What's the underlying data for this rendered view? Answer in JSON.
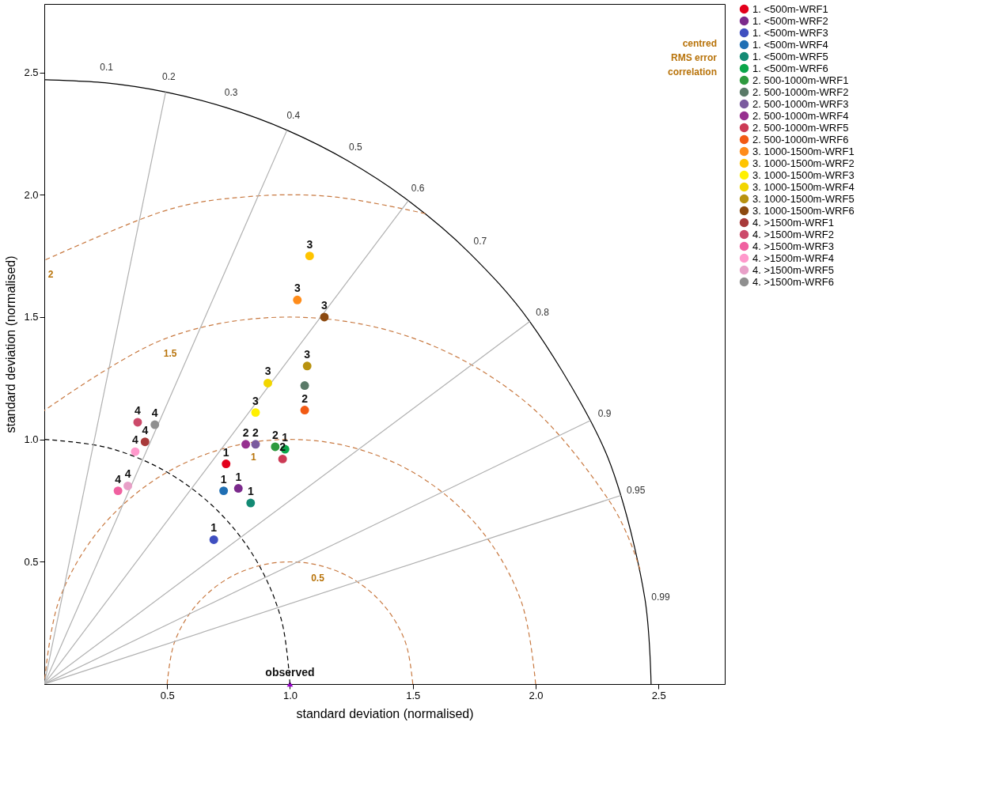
{
  "chart_data": {
    "type": "scatter",
    "xlabel": "standard deviation (normalised)",
    "ylabel": "standard deviation (normalised)",
    "xlim": [
      0,
      2.77
    ],
    "ylim": [
      0,
      2.78
    ],
    "xticks": [
      0.5,
      {
        "value": 1,
        "label": "1.0"
      },
      1.5,
      {
        "value": 2,
        "label": "2.0"
      },
      2.5
    ],
    "yticks": [
      0.5,
      {
        "value": 1,
        "label": "1.0"
      },
      1.5,
      {
        "value": 2,
        "label": "2.0"
      },
      2.5
    ],
    "grid": false,
    "legend": "right",
    "marker": "circle",
    "series": [
      {
        "name": "1. <500m-WRF1",
        "color": "#e3001b",
        "x": [
          0.74
        ],
        "values": [
          0.9
        ]
      },
      {
        "name": "1. <500m-WRF2",
        "color": "#7b2a8c",
        "x": [
          0.79
        ],
        "values": [
          0.8
        ]
      },
      {
        "name": "1. <500m-WRF3",
        "color": "#3f4fc0",
        "x": [
          0.69
        ],
        "values": [
          0.59
        ]
      },
      {
        "name": "1. <500m-WRF4",
        "color": "#1f6fb4",
        "x": [
          0.73
        ],
        "values": [
          0.79
        ]
      },
      {
        "name": "1. <500m-WRF5",
        "color": "#138a74",
        "x": [
          0.84
        ],
        "values": [
          0.74
        ]
      },
      {
        "name": "1. <500m-WRF6",
        "color": "#0aa64a",
        "x": [
          0.98
        ],
        "values": [
          0.96
        ]
      },
      {
        "name": "2. 500-1000m-WRF1",
        "color": "#2e9a3e",
        "x": [
          0.94
        ],
        "values": [
          0.97
        ]
      },
      {
        "name": "2. 500-1000m-WRF2",
        "color": "#5a7a68",
        "x": [
          1.06
        ],
        "values": [
          1.22
        ]
      },
      {
        "name": "2. 500-1000m-WRF3",
        "color": "#7a5a9e",
        "x": [
          0.86
        ],
        "values": [
          0.98
        ]
      },
      {
        "name": "2. 500-1000m-WRF4",
        "color": "#962f8f",
        "x": [
          0.82
        ],
        "values": [
          0.98
        ]
      },
      {
        "name": "2. 500-1000m-WRF5",
        "color": "#cc3a55",
        "x": [
          0.97
        ],
        "values": [
          0.92
        ]
      },
      {
        "name": "2. 500-1000m-WRF6",
        "color": "#f25a14",
        "x": [
          1.06
        ],
        "values": [
          1.12
        ]
      },
      {
        "name": "3. 1000-1500m-WRF1",
        "color": "#ff8c1a",
        "x": [
          1.03
        ],
        "values": [
          1.57
        ]
      },
      {
        "name": "3. 1000-1500m-WRF2",
        "color": "#ffc400",
        "x": [
          1.08
        ],
        "values": [
          1.75
        ]
      },
      {
        "name": "3. 1000-1500m-WRF3",
        "color": "#fff000",
        "x": [
          0.86
        ],
        "values": [
          1.11
        ]
      },
      {
        "name": "3. 1000-1500m-WRF4",
        "color": "#f2d600",
        "x": [
          0.91
        ],
        "values": [
          1.23
        ]
      },
      {
        "name": "3. 1000-1500m-WRF5",
        "color": "#b8920f",
        "x": [
          1.07
        ],
        "values": [
          1.3
        ]
      },
      {
        "name": "3. 1000-1500m-WRF6",
        "color": "#8c4a10",
        "x": [
          1.14
        ],
        "values": [
          1.5
        ]
      },
      {
        "name": "4. >1500m-WRF1",
        "color": "#a83a3a",
        "x": [
          0.41
        ],
        "values": [
          0.99
        ]
      },
      {
        "name": "4. >1500m-WRF2",
        "color": "#cc4a6a",
        "x": [
          0.38
        ],
        "values": [
          1.07
        ]
      },
      {
        "name": "4. >1500m-WRF3",
        "color": "#f060a0",
        "x": [
          0.3
        ],
        "values": [
          0.79
        ]
      },
      {
        "name": "4. >1500m-WRF4",
        "color": "#ff99cc",
        "x": [
          0.37
        ],
        "values": [
          0.95
        ]
      },
      {
        "name": "4. >1500m-WRF5",
        "color": "#e8a0c8",
        "x": [
          0.34
        ],
        "values": [
          0.81
        ]
      },
      {
        "name": "4. >1500m-WRF6",
        "color": "#8f8f8f",
        "x": [
          0.45
        ],
        "values": [
          1.06
        ]
      },
      {
        "color": "#9900cc",
        "marker": "triangle",
        "x": [
          1.0
        ],
        "values": [
          0.0
        ]
      },
      {
        "type": "line",
        "marker": "none",
        "color": "#000000",
        "line_style": "dashed",
        "x": [
          1,
          0.966,
          0.866,
          0.707,
          0.5,
          0.259,
          0
        ],
        "values": [
          0,
          0.259,
          0.5,
          0.707,
          0.866,
          0.966,
          1
        ]
      },
      {
        "type": "line",
        "marker": "none",
        "color": "#000000",
        "line_style": "solid",
        "x": [
          2.47,
          2.445,
          2.347,
          2.223,
          1.976,
          1.729,
          1.482,
          1.235,
          0.988,
          0.741,
          0.494,
          0.247,
          0
        ],
        "values": [
          0,
          0.348,
          0.771,
          1.077,
          1.482,
          1.764,
          1.976,
          2.139,
          2.264,
          2.356,
          2.42,
          2.458,
          2.47
        ]
      },
      {
        "type": "line",
        "marker": "none",
        "color": "#c87941",
        "line_style": "dashed",
        "x": [
          1.5,
          1.47,
          1.383,
          1.25,
          1.087,
          0.913,
          0.75,
          0.617,
          0.53,
          0.5
        ],
        "values": [
          0,
          0.171,
          0.321,
          0.433,
          0.492,
          0.492,
          0.433,
          0.321,
          0.171,
          0
        ]
      },
      {
        "type": "line",
        "marker": "none",
        "color": "#c87941",
        "line_style": "dashed",
        "x": [
          2,
          1.94,
          1.766,
          1.5,
          1.174,
          0.826,
          0.5,
          0.234,
          0.06,
          0
        ],
        "values": [
          0,
          0.342,
          0.643,
          0.866,
          0.985,
          0.985,
          0.866,
          0.643,
          0.342,
          0
        ]
      },
      {
        "type": "line",
        "marker": "none",
        "color": "#c87941",
        "line_style": "dashed",
        "x": [
          2.425,
          2.299,
          1.964,
          1.513,
          1,
          0.487,
          0
        ],
        "values": [
          0.468,
          0.75,
          1.149,
          1.41,
          1.5,
          1.41,
          1.118
        ]
      },
      {
        "type": "line",
        "marker": "none",
        "color": "#c87941",
        "line_style": "dashed",
        "x": [
          1.551,
          1.174,
          0.826,
          0.482,
          0
        ],
        "values": [
          1.923,
          1.992,
          1.992,
          1.932,
          1.732
        ]
      },
      {
        "type": "line",
        "marker": "none",
        "color": "#b0b0b0",
        "line_style": "solid",
        "x": [
          0,
          0.494
        ],
        "values": [
          0,
          2.42
        ]
      },
      {
        "type": "line",
        "marker": "none",
        "color": "#b0b0b0",
        "line_style": "solid",
        "x": [
          0,
          0.988
        ],
        "values": [
          0,
          2.264
        ]
      },
      {
        "type": "line",
        "marker": "none",
        "color": "#b0b0b0",
        "line_style": "solid",
        "x": [
          0,
          1.482
        ],
        "values": [
          0,
          1.976
        ]
      },
      {
        "type": "line",
        "marker": "none",
        "color": "#b0b0b0",
        "line_style": "solid",
        "x": [
          0,
          1.976
        ],
        "values": [
          0,
          1.482
        ]
      },
      {
        "type": "line",
        "marker": "none",
        "color": "#b0b0b0",
        "line_style": "solid",
        "x": [
          0,
          2.223
        ],
        "values": [
          0,
          1.077
        ]
      },
      {
        "type": "line",
        "marker": "none",
        "color": "#b0b0b0",
        "line_style": "solid",
        "x": [
          0,
          2.347
        ],
        "values": [
          0,
          0.771
        ]
      }
    ],
    "annotations": [
      {
        "text": "1",
        "x": 0.74,
        "y": 0.9
      },
      {
        "text": "1",
        "x": 0.79,
        "y": 0.8
      },
      {
        "text": "1",
        "x": 0.69,
        "y": 0.59
      },
      {
        "text": "1",
        "x": 0.73,
        "y": 0.79
      },
      {
        "text": "1",
        "x": 0.84,
        "y": 0.74
      },
      {
        "text": "1",
        "x": 0.98,
        "y": 0.96
      },
      {
        "text": "2",
        "x": 0.94,
        "y": 0.97
      },
      {
        "text": "2",
        "x": 0.86,
        "y": 0.98
      },
      {
        "text": "2",
        "x": 0.82,
        "y": 0.98
      },
      {
        "text": "2",
        "x": 0.97,
        "y": 0.92
      },
      {
        "text": "2",
        "x": 1.06,
        "y": 1.12
      },
      {
        "text": "3",
        "x": 1.03,
        "y": 1.57
      },
      {
        "text": "3",
        "x": 1.08,
        "y": 1.75
      },
      {
        "text": "3",
        "x": 0.86,
        "y": 1.11
      },
      {
        "text": "3",
        "x": 0.91,
        "y": 1.23
      },
      {
        "text": "3",
        "x": 1.07,
        "y": 1.3
      },
      {
        "text": "3",
        "x": 1.14,
        "y": 1.5
      },
      {
        "text": "4",
        "x": 0.41,
        "y": 0.99
      },
      {
        "text": "4",
        "x": 0.38,
        "y": 1.07
      },
      {
        "text": "4",
        "x": 0.3,
        "y": 0.79
      },
      {
        "text": "4",
        "x": 0.37,
        "y": 0.95
      },
      {
        "text": "4",
        "x": 0.34,
        "y": 0.81
      },
      {
        "text": "4",
        "x": 0.45,
        "y": 1.06
      },
      {
        "text": "observed",
        "x": 1.0,
        "y": 0.0
      },
      {
        "text": "0.5",
        "x": 1.087,
        "y": 0.492
      },
      {
        "text": "1",
        "x": 0.826,
        "y": 0.985
      },
      {
        "text": "1.5",
        "x": 0.487,
        "y": 1.41
      },
      {
        "text": "2",
        "x": 0,
        "y": 1.732
      },
      "centred",
      "RMS error",
      "correlation",
      {
        "text": "0.1",
        "x": 0.247,
        "y": 2.458
      },
      {
        "text": "0.2",
        "x": 0.494,
        "y": 2.42
      },
      {
        "text": "0.3",
        "x": 0.741,
        "y": 2.356
      },
      {
        "text": "0.4",
        "x": 0.988,
        "y": 2.264
      },
      {
        "text": "0.5",
        "x": 1.235,
        "y": 2.139
      },
      {
        "text": "0.6",
        "x": 1.482,
        "y": 1.976
      },
      {
        "text": "0.7",
        "x": 1.729,
        "y": 1.764
      },
      {
        "text": "0.8",
        "x": 1.976,
        "y": 1.482
      },
      {
        "text": "0.9",
        "x": 2.223,
        "y": 1.077
      },
      {
        "text": "0.95",
        "x": 2.347,
        "y": 0.771
      },
      {
        "text": "0.99",
        "x": 2.445,
        "y": 0.348
      }
    ]
  }
}
